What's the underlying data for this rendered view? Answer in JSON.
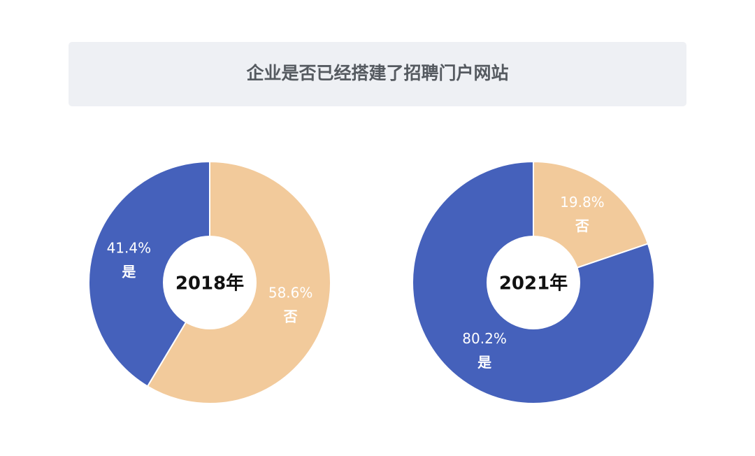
{
  "title": "企业是否已经搭建了招聘门户网站",
  "chart_data": [
    {
      "type": "donut",
      "center_label": "2018年",
      "categories": [
        "否",
        "是"
      ],
      "values": [
        58.6,
        41.4
      ],
      "value_labels": [
        "58.6%",
        "41.4%"
      ],
      "colors": [
        "#f2ca9b",
        "#4561bb"
      ]
    },
    {
      "type": "donut",
      "center_label": "2021年",
      "categories": [
        "否",
        "是"
      ],
      "values": [
        19.8,
        80.2
      ],
      "value_labels": [
        "19.8%",
        "80.2%"
      ],
      "colors": [
        "#f2ca9b",
        "#4561bb"
      ]
    }
  ]
}
